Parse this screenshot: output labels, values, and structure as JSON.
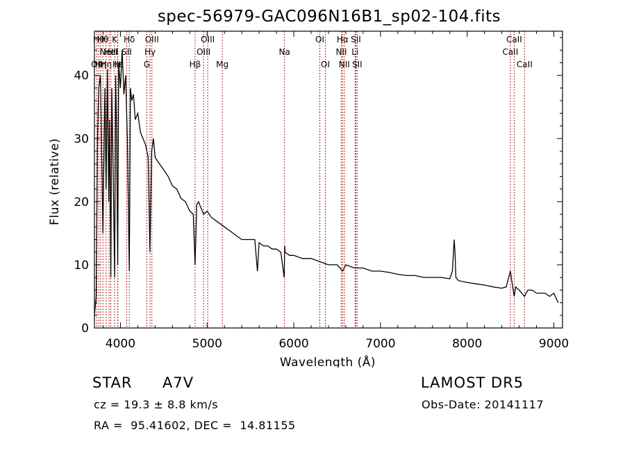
{
  "chart_data": {
    "type": "line",
    "title": "spec-56979-GAC096N16B1_sp02-104.fits",
    "xlabel": "Wavelength (Å)",
    "ylabel": "Flux (relative)",
    "xlim": [
      3700,
      9100
    ],
    "ylim": [
      0,
      47
    ],
    "xticks": [
      4000,
      5000,
      6000,
      7000,
      8000,
      9000
    ],
    "yticks": [
      0,
      10,
      20,
      30,
      40
    ],
    "grid": false,
    "series": [
      {
        "color": "#000000",
        "x": [
          3700,
          3720,
          3735,
          3750,
          3770,
          3798,
          3820,
          3835,
          3850,
          3865,
          3875,
          3889,
          3900,
          3915,
          3933,
          3945,
          3955,
          3968,
          3980,
          4000,
          4020,
          4040,
          4060,
          4080,
          4102,
          4115,
          4130,
          4150,
          4170,
          4200,
          4230,
          4260,
          4290,
          4320,
          4340,
          4360,
          4380,
          4400,
          4450,
          4500,
          4550,
          4600,
          4650,
          4700,
          4750,
          4800,
          4840,
          4861,
          4880,
          4900,
          4930,
          4960,
          5000,
          5050,
          5100,
          5150,
          5200,
          5250,
          5300,
          5350,
          5400,
          5450,
          5500,
          5550,
          5580,
          5600,
          5650,
          5700,
          5750,
          5800,
          5850,
          5889,
          5895,
          5900,
          5950,
          6000,
          6100,
          6200,
          6300,
          6400,
          6500,
          6563,
          6600,
          6700,
          6800,
          6900,
          7000,
          7100,
          7200,
          7300,
          7400,
          7500,
          7600,
          7700,
          7800,
          7830,
          7850,
          7860,
          7870,
          7900,
          8000,
          8100,
          8200,
          8300,
          8400,
          8450,
          8498,
          8520,
          8542,
          8560,
          8600,
          8662,
          8680,
          8700,
          8750,
          8800,
          8850,
          8900,
          8950,
          9000,
          9050
        ],
        "y": [
          2,
          5,
          30,
          38,
          40,
          15,
          38,
          22,
          41,
          20,
          33,
          8,
          38,
          26,
          8,
          40,
          32,
          10,
          42,
          38,
          44,
          37,
          40,
          30,
          9,
          38,
          36,
          37,
          33,
          34,
          31,
          30,
          29,
          27,
          12,
          28,
          30,
          27,
          26,
          25,
          24,
          22.5,
          22,
          20.5,
          20,
          18.5,
          18,
          10,
          19.5,
          20,
          19,
          18,
          18.5,
          17.5,
          17,
          16.5,
          16,
          15.5,
          15,
          14.5,
          14,
          14,
          14,
          14,
          9,
          13.5,
          13,
          13,
          12.5,
          12.5,
          12,
          8,
          13,
          12,
          11.5,
          11.5,
          11,
          11,
          10.5,
          10,
          10,
          9,
          10,
          9.5,
          9.5,
          9,
          9,
          8.8,
          8.5,
          8.3,
          8.3,
          8,
          8,
          8,
          7.8,
          9,
          14,
          12,
          8,
          7.5,
          7.2,
          7,
          6.8,
          6.5,
          6.3,
          6.5,
          9,
          7,
          5,
          6.5,
          6,
          5,
          5.5,
          6,
          6,
          5.5,
          5.5,
          5.5,
          5,
          5.5,
          4
        ]
      }
    ],
    "line_markers": [
      {
        "x": 3727,
        "labels": [
          "OII"
        ],
        "row": 2
      },
      {
        "x": 3750,
        "labels": [
          "Hθ"
        ],
        "row": 0
      },
      {
        "x": 3771,
        "labels": [
          "Hη"
        ],
        "row": 2
      },
      {
        "x": 3798,
        "labels": [
          "Hθ"
        ],
        "row": 0
      },
      {
        "x": 3835,
        "labels": [
          "Hη"
        ],
        "row": 2
      },
      {
        "x": 3869,
        "labels": [
          "NeIII"
        ],
        "row": 1
      },
      {
        "x": 3889,
        "labels": [
          "HeI"
        ],
        "row": 1
      },
      {
        "x": 3933,
        "labels": [
          "K"
        ],
        "row": 0
      },
      {
        "x": 3968,
        "labels": [
          "H"
        ],
        "row": 2
      },
      {
        "x": 3970,
        "labels": [
          "Hε"
        ],
        "row": 2
      },
      {
        "x": 4072,
        "labels": [
          "SII"
        ],
        "row": 1
      },
      {
        "x": 4102,
        "labels": [
          "Hδ"
        ],
        "row": 0
      },
      {
        "x": 4304,
        "labels": [
          "G"
        ],
        "row": 2
      },
      {
        "x": 4341,
        "labels": [
          "Hγ"
        ],
        "row": 1
      },
      {
        "x": 4363,
        "labels": [
          "OIII"
        ],
        "row": 0
      },
      {
        "x": 4861,
        "labels": [
          "Hβ"
        ],
        "row": 2
      },
      {
        "x": 4959,
        "labels": [
          "OIII"
        ],
        "row": 1
      },
      {
        "x": 5007,
        "labels": [
          "OIII"
        ],
        "row": 0
      },
      {
        "x": 5175,
        "labels": [
          "Mg"
        ],
        "row": 2
      },
      {
        "x": 5893,
        "labels": [
          "Na"
        ],
        "row": 1
      },
      {
        "x": 6300,
        "labels": [
          "OI"
        ],
        "row": 0
      },
      {
        "x": 6364,
        "labels": [
          "OI"
        ],
        "row": 2
      },
      {
        "x": 6548,
        "labels": [
          "NII"
        ],
        "row": 1
      },
      {
        "x": 6563,
        "labels": [
          "Hα"
        ],
        "row": 0
      },
      {
        "x": 6583,
        "labels": [
          "NII"
        ],
        "row": 2
      },
      {
        "x": 6707,
        "labels": [
          "Li"
        ],
        "row": 1
      },
      {
        "x": 6716,
        "labels": [
          "SII"
        ],
        "row": 0
      },
      {
        "x": 6731,
        "labels": [
          "SII"
        ],
        "row": 2
      },
      {
        "x": 8498,
        "labels": [
          "CaII"
        ],
        "row": 1
      },
      {
        "x": 8542,
        "labels": [
          "CaII"
        ],
        "row": 0
      },
      {
        "x": 8662,
        "labels": [
          "CaII"
        ],
        "row": 2
      }
    ]
  },
  "footer": {
    "object_class": "STAR",
    "subclass": "A7V",
    "survey": "LAMOST DR5",
    "cz": "cz = 19.3 ± 8.8 km/s",
    "obs_date": "Obs-Date: 20141117",
    "coords": "RA =  95.41602, DEC =  14.81155"
  },
  "colors": {
    "spectrum": "#000000",
    "marker_line": "#b02020",
    "background": "#ffffff"
  }
}
